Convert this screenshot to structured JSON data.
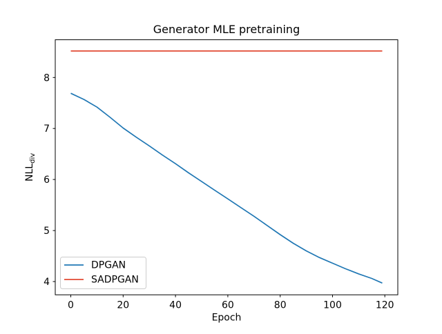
{
  "chart_data": {
    "type": "line",
    "title": "Generator MLE pretraining",
    "xlabel": "Epoch",
    "ylabel": "NLL",
    "ylabel_subscript": "div",
    "xlim": [
      -5.95,
      124.95
    ],
    "ylim": [
      3.74,
      8.74
    ],
    "xticks": [
      0,
      20,
      40,
      60,
      80,
      100,
      120
    ],
    "yticks": [
      4,
      5,
      6,
      7,
      8
    ],
    "grid": false,
    "legend_position": "lower-left",
    "background_color": "#ffffff",
    "series": [
      {
        "name": "DPGAN",
        "color": "#1f77b4",
        "x": [
          0,
          5,
          10,
          15,
          20,
          25,
          30,
          35,
          40,
          45,
          50,
          55,
          60,
          65,
          70,
          75,
          80,
          85,
          90,
          95,
          100,
          105,
          110,
          115,
          119
        ],
        "y": [
          7.69,
          7.57,
          7.42,
          7.22,
          7.01,
          6.83,
          6.66,
          6.48,
          6.31,
          6.13,
          5.96,
          5.79,
          5.62,
          5.45,
          5.28,
          5.1,
          4.92,
          4.75,
          4.6,
          4.47,
          4.36,
          4.25,
          4.15,
          4.06,
          3.97
        ]
      },
      {
        "name": "SADPGAN",
        "color": "#e24a33",
        "x": [
          0,
          119
        ],
        "y": [
          8.52,
          8.52
        ]
      }
    ]
  }
}
